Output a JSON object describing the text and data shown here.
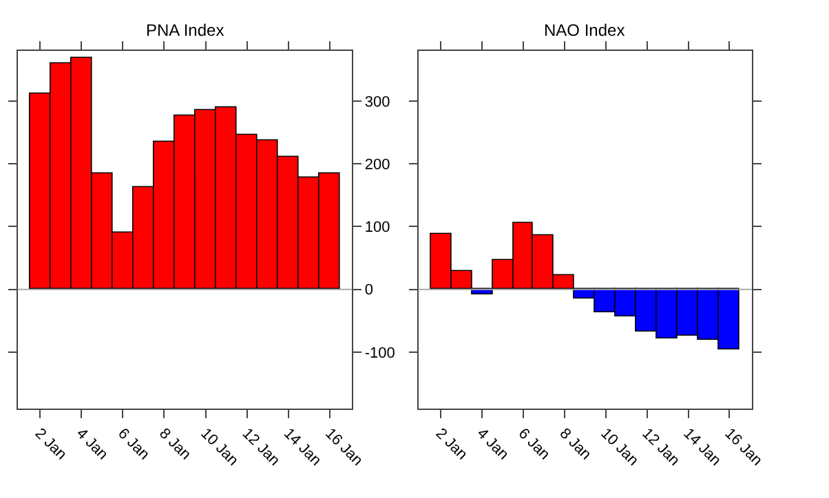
{
  "chart_data": [
    {
      "type": "bar",
      "title": "PNA Index",
      "categories": [
        "2 Jan",
        null,
        "4 Jan",
        null,
        "6 Jan",
        null,
        "8 Jan",
        null,
        "10 Jan",
        null,
        "12 Jan",
        null,
        "14 Jan",
        null,
        "16 Jan"
      ],
      "values": [
        313,
        360,
        368,
        184,
        91,
        163,
        236,
        276,
        285,
        290,
        246,
        237,
        212,
        179,
        185
      ],
      "colors": [
        "#ff0000",
        "#ff0000",
        "#ff0000",
        "#ff0000",
        "#ff0000",
        "#ff0000",
        "#ff0000",
        "#ff0000",
        "#ff0000",
        "#ff0000",
        "#ff0000",
        "#ff0000",
        "#ff0000",
        "#ff0000",
        "#ff0000"
      ],
      "ylim": [
        -190,
        380
      ],
      "yticks": [
        -100,
        0,
        100,
        200,
        300
      ],
      "ref_lines": [
        {
          "axis": "y",
          "value": 0,
          "color": "#aaaaaa"
        }
      ]
    },
    {
      "type": "bar",
      "title": "NAO Index",
      "categories": [
        "2 Jan",
        null,
        "4 Jan",
        null,
        "6 Jan",
        null,
        "8 Jan",
        null,
        "10 Jan",
        null,
        "12 Jan",
        null,
        "14 Jan",
        null,
        "16 Jan"
      ],
      "values": [
        88,
        29,
        -9,
        47,
        105,
        87,
        22,
        -15,
        -36,
        -43,
        -67,
        -78,
        -74,
        -80,
        -95
      ],
      "colors": [
        "#ff0000",
        "#ff0000",
        "#0000ff",
        "#ff0000",
        "#ff0000",
        "#ff0000",
        "#ff0000",
        "#0000ff",
        "#0000ff",
        "#0000ff",
        "#0000ff",
        "#0000ff",
        "#0000ff",
        "#0000ff",
        "#0000ff"
      ],
      "ylim": [
        -190,
        380
      ],
      "yticks": [
        -100,
        0,
        100,
        200,
        300
      ],
      "tick_labels": "x",
      "ref_lines": [
        {
          "axis": "y",
          "value": 0,
          "color": "#aaaaaa"
        }
      ]
    }
  ]
}
